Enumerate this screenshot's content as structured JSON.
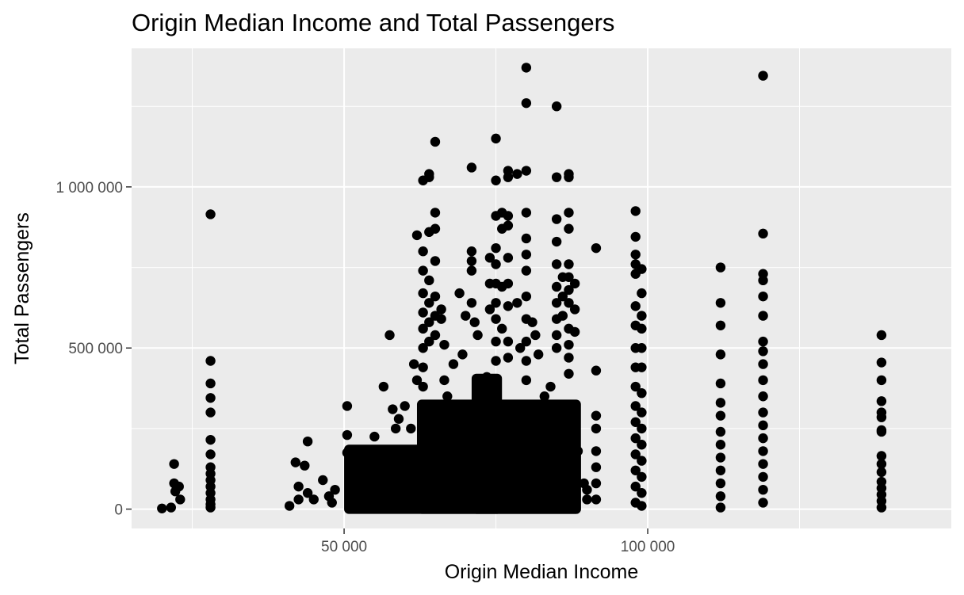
{
  "chart_data": {
    "type": "scatter",
    "title": "Origin Median Income and Total Passengers",
    "xlabel": "Origin Median Income",
    "ylabel": "Total Passengers",
    "xlim": [
      15000,
      150000
    ],
    "ylim": [
      -60000,
      1430000
    ],
    "x_ticks": [
      {
        "value": 50000,
        "label": "50 000"
      },
      {
        "value": 100000,
        "label": "100 000"
      }
    ],
    "y_ticks": [
      {
        "value": 0,
        "label": "0"
      },
      {
        "value": 500000,
        "label": "500 000"
      },
      {
        "value": 1000000,
        "label": "1 000 000"
      }
    ],
    "grid": true,
    "point_color": "#000000",
    "panel_color": "#ebebeb",
    "grid_color": "#ffffff",
    "points": [
      [
        20000,
        2000
      ],
      [
        21500,
        5000
      ],
      [
        22000,
        140000
      ],
      [
        22000,
        80000
      ],
      [
        22200,
        55000
      ],
      [
        22800,
        70000
      ],
      [
        23000,
        30000
      ],
      [
        28000,
        915000
      ],
      [
        28000,
        460000
      ],
      [
        28000,
        390000
      ],
      [
        28000,
        345000
      ],
      [
        28000,
        300000
      ],
      [
        28000,
        215000
      ],
      [
        28000,
        170000
      ],
      [
        28000,
        130000
      ],
      [
        28000,
        110000
      ],
      [
        28000,
        90000
      ],
      [
        28000,
        70000
      ],
      [
        28000,
        50000
      ],
      [
        28000,
        30000
      ],
      [
        28000,
        15000
      ],
      [
        28000,
        5000
      ],
      [
        41000,
        10000
      ],
      [
        42000,
        145000
      ],
      [
        42500,
        70000
      ],
      [
        42500,
        30000
      ],
      [
        43500,
        135000
      ],
      [
        44000,
        210000
      ],
      [
        44000,
        50000
      ],
      [
        45000,
        30000
      ],
      [
        46500,
        90000
      ],
      [
        47500,
        40000
      ],
      [
        48000,
        20000
      ],
      [
        48500,
        60000
      ],
      [
        50500,
        320000
      ],
      [
        50500,
        230000
      ],
      [
        50500,
        175000
      ],
      [
        51000,
        120000
      ],
      [
        52500,
        110000
      ],
      [
        53500,
        100000
      ],
      [
        54000,
        120000
      ],
      [
        55000,
        225000
      ],
      [
        55500,
        90000
      ],
      [
        56500,
        380000
      ],
      [
        57500,
        540000
      ],
      [
        58000,
        310000
      ],
      [
        58500,
        250000
      ],
      [
        59000,
        280000
      ],
      [
        59500,
        180000
      ],
      [
        60000,
        320000
      ],
      [
        61000,
        250000
      ],
      [
        61500,
        450000
      ],
      [
        62000,
        850000
      ],
      [
        62000,
        400000
      ],
      [
        63000,
        1020000
      ],
      [
        63000,
        800000
      ],
      [
        63000,
        740000
      ],
      [
        63000,
        670000
      ],
      [
        63000,
        610000
      ],
      [
        63000,
        560000
      ],
      [
        63000,
        500000
      ],
      [
        63000,
        440000
      ],
      [
        63000,
        380000
      ],
      [
        63000,
        300000
      ],
      [
        64000,
        1030000
      ],
      [
        64000,
        1040000
      ],
      [
        64000,
        860000
      ],
      [
        64000,
        710000
      ],
      [
        64000,
        640000
      ],
      [
        64000,
        580000
      ],
      [
        64000,
        520000
      ],
      [
        65000,
        1140000
      ],
      [
        65000,
        920000
      ],
      [
        65000,
        870000
      ],
      [
        65000,
        770000
      ],
      [
        65000,
        660000
      ],
      [
        65000,
        600000
      ],
      [
        65000,
        540000
      ],
      [
        66000,
        620000
      ],
      [
        66000,
        590000
      ],
      [
        66500,
        510000
      ],
      [
        66500,
        400000
      ],
      [
        67000,
        350000
      ],
      [
        68000,
        450000
      ],
      [
        69000,
        670000
      ],
      [
        69500,
        480000
      ],
      [
        70000,
        600000
      ],
      [
        71000,
        1060000
      ],
      [
        71000,
        800000
      ],
      [
        71000,
        770000
      ],
      [
        71000,
        740000
      ],
      [
        71000,
        640000
      ],
      [
        71500,
        580000
      ],
      [
        72000,
        540000
      ],
      [
        73500,
        410000
      ],
      [
        74000,
        780000
      ],
      [
        74000,
        700000
      ],
      [
        74000,
        620000
      ],
      [
        75000,
        1150000
      ],
      [
        75000,
        1020000
      ],
      [
        75000,
        910000
      ],
      [
        75000,
        810000
      ],
      [
        75000,
        760000
      ],
      [
        75000,
        700000
      ],
      [
        75000,
        640000
      ],
      [
        75000,
        590000
      ],
      [
        75000,
        520000
      ],
      [
        75000,
        460000
      ],
      [
        75000,
        400000
      ],
      [
        76000,
        920000
      ],
      [
        76000,
        870000
      ],
      [
        76000,
        690000
      ],
      [
        76000,
        560000
      ],
      [
        77000,
        1050000
      ],
      [
        77000,
        1030000
      ],
      [
        77000,
        910000
      ],
      [
        77000,
        880000
      ],
      [
        77000,
        780000
      ],
      [
        77000,
        700000
      ],
      [
        77000,
        630000
      ],
      [
        77000,
        520000
      ],
      [
        77000,
        470000
      ],
      [
        78500,
        1040000
      ],
      [
        78500,
        640000
      ],
      [
        79000,
        500000
      ],
      [
        80000,
        1370000
      ],
      [
        80000,
        1260000
      ],
      [
        80000,
        1050000
      ],
      [
        80000,
        920000
      ],
      [
        80000,
        840000
      ],
      [
        80000,
        790000
      ],
      [
        80000,
        740000
      ],
      [
        80000,
        660000
      ],
      [
        80000,
        590000
      ],
      [
        80000,
        520000
      ],
      [
        80000,
        460000
      ],
      [
        80000,
        400000
      ],
      [
        81000,
        580000
      ],
      [
        81500,
        540000
      ],
      [
        82000,
        480000
      ],
      [
        83000,
        350000
      ],
      [
        84000,
        380000
      ],
      [
        85000,
        1250000
      ],
      [
        85000,
        1030000
      ],
      [
        85000,
        900000
      ],
      [
        85000,
        830000
      ],
      [
        85000,
        760000
      ],
      [
        85000,
        690000
      ],
      [
        85000,
        640000
      ],
      [
        85000,
        590000
      ],
      [
        85000,
        540000
      ],
      [
        85000,
        500000
      ],
      [
        86000,
        720000
      ],
      [
        86000,
        660000
      ],
      [
        86000,
        600000
      ],
      [
        87000,
        1040000
      ],
      [
        87000,
        1030000
      ],
      [
        87000,
        920000
      ],
      [
        87000,
        870000
      ],
      [
        87000,
        760000
      ],
      [
        87000,
        720000
      ],
      [
        87000,
        680000
      ],
      [
        87000,
        640000
      ],
      [
        87000,
        560000
      ],
      [
        87000,
        510000
      ],
      [
        87000,
        470000
      ],
      [
        87000,
        420000
      ],
      [
        88000,
        700000
      ],
      [
        88000,
        620000
      ],
      [
        88000,
        550000
      ],
      [
        88500,
        180000
      ],
      [
        89500,
        80000
      ],
      [
        90000,
        60000
      ],
      [
        90000,
        30000
      ],
      [
        91500,
        810000
      ],
      [
        91500,
        430000
      ],
      [
        91500,
        290000
      ],
      [
        91500,
        250000
      ],
      [
        91500,
        180000
      ],
      [
        91500,
        130000
      ],
      [
        91500,
        80000
      ],
      [
        91500,
        30000
      ],
      [
        98000,
        925000
      ],
      [
        98000,
        845000
      ],
      [
        98000,
        790000
      ],
      [
        98000,
        760000
      ],
      [
        98000,
        730000
      ],
      [
        98000,
        630000
      ],
      [
        98000,
        570000
      ],
      [
        98000,
        500000
      ],
      [
        98000,
        440000
      ],
      [
        98000,
        380000
      ],
      [
        98000,
        320000
      ],
      [
        98000,
        270000
      ],
      [
        98000,
        220000
      ],
      [
        98000,
        170000
      ],
      [
        98000,
        120000
      ],
      [
        98000,
        70000
      ],
      [
        98000,
        20000
      ],
      [
        99000,
        745000
      ],
      [
        99000,
        670000
      ],
      [
        99000,
        600000
      ],
      [
        99000,
        560000
      ],
      [
        99000,
        500000
      ],
      [
        99000,
        440000
      ],
      [
        99000,
        360000
      ],
      [
        99000,
        300000
      ],
      [
        99000,
        250000
      ],
      [
        99000,
        200000
      ],
      [
        99000,
        150000
      ],
      [
        99000,
        100000
      ],
      [
        99000,
        50000
      ],
      [
        99000,
        10000
      ],
      [
        112000,
        750000
      ],
      [
        112000,
        640000
      ],
      [
        112000,
        570000
      ],
      [
        112000,
        480000
      ],
      [
        112000,
        390000
      ],
      [
        112000,
        330000
      ],
      [
        112000,
        290000
      ],
      [
        112000,
        240000
      ],
      [
        112000,
        200000
      ],
      [
        112000,
        160000
      ],
      [
        112000,
        120000
      ],
      [
        112000,
        80000
      ],
      [
        112000,
        40000
      ],
      [
        112000,
        5000
      ],
      [
        119000,
        1345000
      ],
      [
        119000,
        855000
      ],
      [
        119000,
        730000
      ],
      [
        119000,
        710000
      ],
      [
        119000,
        660000
      ],
      [
        119000,
        600000
      ],
      [
        119000,
        520000
      ],
      [
        119000,
        490000
      ],
      [
        119000,
        450000
      ],
      [
        119000,
        400000
      ],
      [
        119000,
        350000
      ],
      [
        119000,
        300000
      ],
      [
        119000,
        260000
      ],
      [
        119000,
        220000
      ],
      [
        119000,
        180000
      ],
      [
        119000,
        140000
      ],
      [
        119000,
        100000
      ],
      [
        119000,
        60000
      ],
      [
        119000,
        20000
      ],
      [
        138500,
        540000
      ],
      [
        138500,
        455000
      ],
      [
        138500,
        400000
      ],
      [
        138500,
        335000
      ],
      [
        138500,
        300000
      ],
      [
        138500,
        285000
      ],
      [
        138500,
        245000
      ],
      [
        138500,
        240000
      ],
      [
        138500,
        165000
      ],
      [
        138500,
        140000
      ],
      [
        138500,
        115000
      ],
      [
        138500,
        85000
      ],
      [
        138500,
        65000
      ],
      [
        138500,
        45000
      ],
      [
        138500,
        25000
      ],
      [
        138500,
        5000
      ]
    ],
    "dense_regions": [
      {
        "x": [
          50000,
          89000
        ],
        "y": [
          0,
          200000
        ]
      },
      {
        "x": [
          62000,
          89000
        ],
        "y": [
          0,
          340000
        ]
      },
      {
        "x": [
          71000,
          76000
        ],
        "y": [
          0,
          420000
        ]
      }
    ]
  }
}
